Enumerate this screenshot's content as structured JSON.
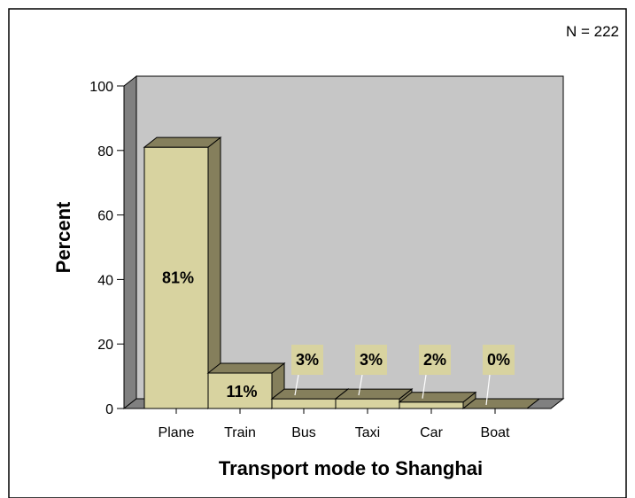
{
  "chart_data": {
    "type": "bar",
    "categories": [
      "Plane",
      "Train",
      "Bus",
      "Taxi",
      "Car",
      "Boat"
    ],
    "values": [
      81,
      11,
      3,
      3,
      2,
      0
    ],
    "value_labels": [
      "81%",
      "11%",
      "3%",
      "3%",
      "2%",
      "0%"
    ],
    "xlabel": "Transport mode to Shanghai",
    "ylabel": "Percent",
    "ylim": [
      0,
      100
    ],
    "yticks": [
      0,
      20,
      40,
      60,
      80,
      100
    ],
    "annotation": "N = 222",
    "style": "3d",
    "colors": {
      "bar_front": "#d8d3a0",
      "bar_top": "#857f5c",
      "bar_side": "#857f5c",
      "label_box": "#d8d3a0",
      "plot_back": "#c6c6c6",
      "plot_left_wall": "#808080",
      "plot_floor": "#808080"
    }
  }
}
